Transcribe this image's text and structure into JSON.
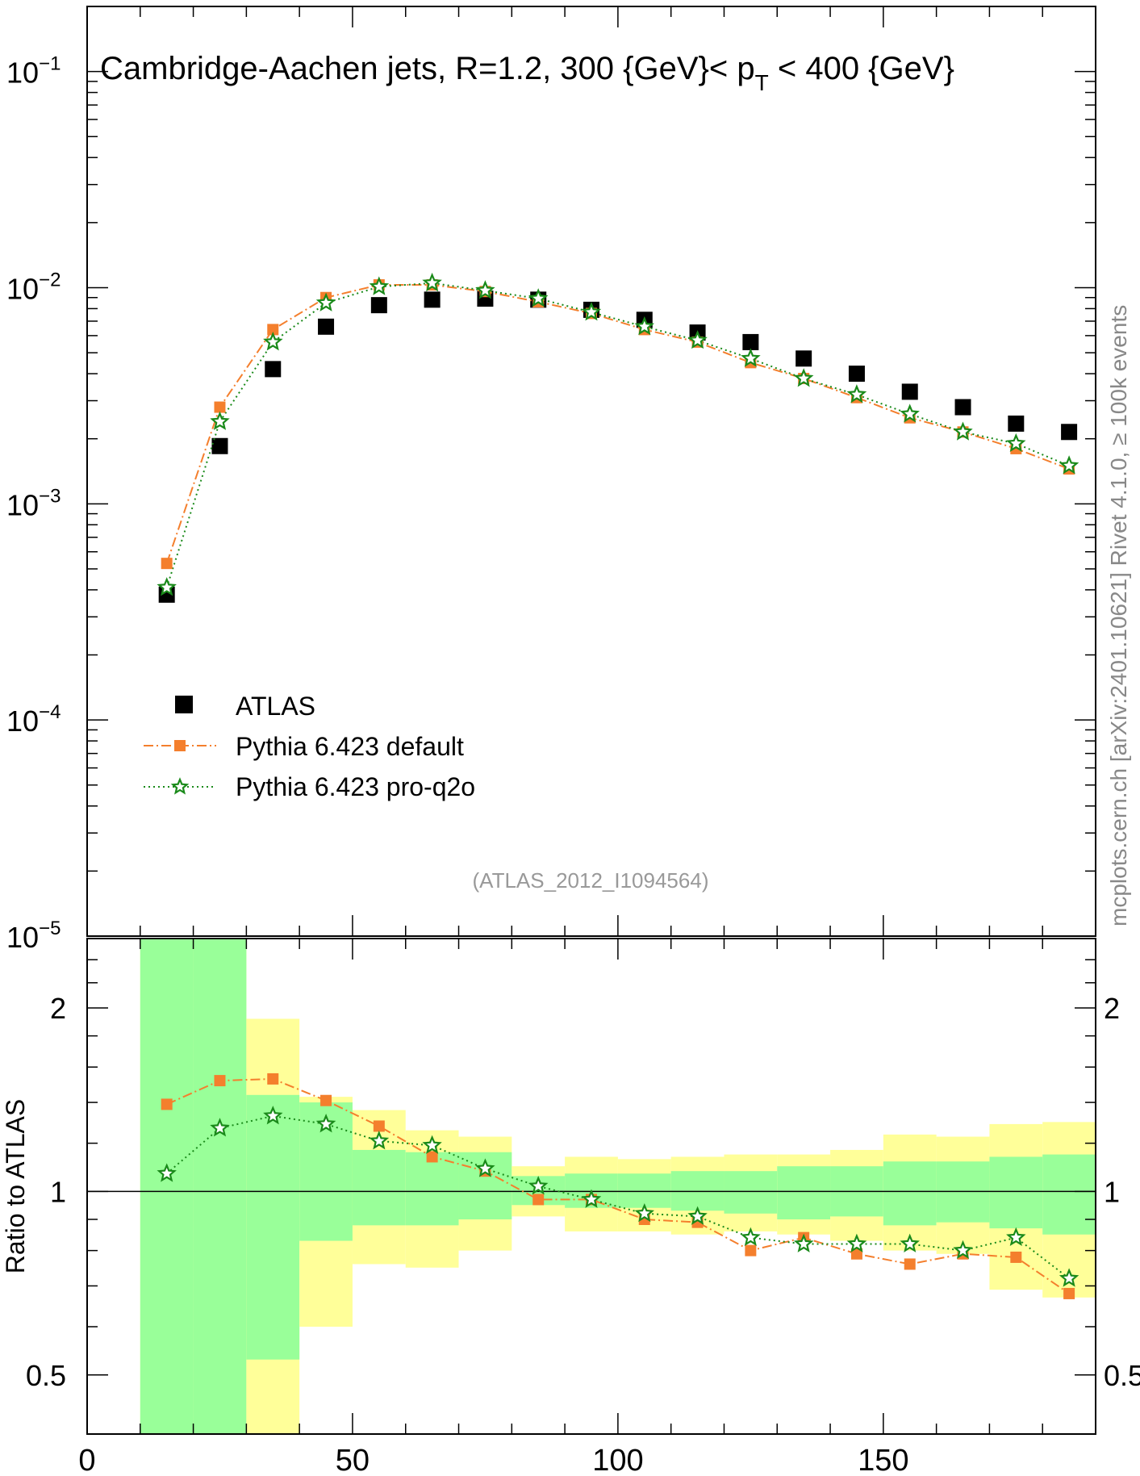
{
  "colors": {
    "atlas": "#000000",
    "pythia_default": "#f47f2d",
    "pythia_proq2o": "#1a8a1a",
    "band_inner": "#99ff99",
    "band_outer": "#ffff99",
    "side_text": "#888888"
  },
  "chart_data": [
    {
      "panel": "main",
      "type": "scatter",
      "title": "Cambridge-Aachen jets, R=1.2, 300 {GeV}< p_T < 400 {GeV}",
      "title_parts": {
        "pre": "Cambridge-Aachen jets, R=1.2, 300 {GeV}< p",
        "sub": "T",
        "post": " < 400 {GeV}"
      },
      "yscale": "log",
      "xlim": [
        0,
        190
      ],
      "ylim": [
        1e-05,
        0.2
      ],
      "ytick_labels": [
        {
          "value": 0.1,
          "base": "10",
          "exp": "−1"
        },
        {
          "value": 0.01,
          "base": "10",
          "exp": "−2"
        },
        {
          "value": 0.001,
          "base": "10",
          "exp": "−3"
        },
        {
          "value": 0.0001,
          "base": "10",
          "exp": "−4"
        },
        {
          "value": 1e-05,
          "base": "10",
          "exp": "−5"
        }
      ],
      "x": [
        15,
        25,
        35,
        45,
        55,
        65,
        75,
        85,
        95,
        105,
        115,
        125,
        135,
        145,
        155,
        165,
        175,
        185
      ],
      "series": [
        {
          "name": "ATLAS",
          "marker": "square",
          "values": [
            0.00038,
            0.00185,
            0.0042,
            0.0066,
            0.0083,
            0.0088,
            0.0089,
            0.0088,
            0.0079,
            0.0071,
            0.0062,
            0.0056,
            0.0047,
            0.004,
            0.0033,
            0.0028,
            0.00235,
            0.00215
          ]
        },
        {
          "name": "Pythia 6.423 default",
          "marker": "square-small",
          "line": "dashdot",
          "values": [
            0.00053,
            0.0028,
            0.0064,
            0.009,
            0.0103,
            0.0103,
            0.0096,
            0.0086,
            0.0076,
            0.0064,
            0.0056,
            0.0045,
            0.0038,
            0.0031,
            0.0025,
            0.00215,
            0.0018,
            0.00145
          ]
        },
        {
          "name": "Pythia 6.423 pro-q2o",
          "marker": "star",
          "line": "dotted",
          "values": [
            0.00041,
            0.0024,
            0.0056,
            0.0085,
            0.0101,
            0.0105,
            0.0097,
            0.0089,
            0.0077,
            0.0066,
            0.0057,
            0.0047,
            0.0038,
            0.0032,
            0.0026,
            0.00215,
            0.0019,
            0.0015
          ]
        }
      ],
      "annotation": "(ATLAS_2012_I1094564)"
    },
    {
      "panel": "ratio",
      "type": "scatter",
      "ylabel": "Ratio to ATLAS",
      "yscale": "log",
      "xlim": [
        0,
        190
      ],
      "ylim": [
        0.4,
        2.6
      ],
      "ytick_labels": [
        {
          "value": 2,
          "label": "2"
        },
        {
          "value": 1,
          "label": "1"
        },
        {
          "value": 0.5,
          "label": "0.5"
        }
      ],
      "xtick_labels": [
        {
          "value": 0,
          "label": "0"
        },
        {
          "value": 50,
          "label": "50"
        },
        {
          "value": 100,
          "label": "100"
        },
        {
          "value": 150,
          "label": "150"
        }
      ],
      "reference_line": 1,
      "bins": [
        [
          10,
          20
        ],
        [
          20,
          30
        ],
        [
          30,
          40
        ],
        [
          40,
          50
        ],
        [
          50,
          60
        ],
        [
          60,
          70
        ],
        [
          70,
          80
        ],
        [
          80,
          90
        ],
        [
          90,
          100
        ],
        [
          100,
          110
        ],
        [
          110,
          120
        ],
        [
          120,
          130
        ],
        [
          130,
          140
        ],
        [
          140,
          150
        ],
        [
          150,
          160
        ],
        [
          160,
          170
        ],
        [
          170,
          180
        ],
        [
          180,
          190
        ]
      ],
      "band_inner": {
        "lo": [
          0.4,
          0.4,
          0.53,
          0.83,
          0.88,
          0.88,
          0.9,
          0.95,
          0.94,
          0.94,
          0.93,
          0.92,
          0.9,
          0.91,
          0.88,
          0.89,
          0.87,
          0.85
        ],
        "hi": [
          2.6,
          2.6,
          1.44,
          1.4,
          1.17,
          1.16,
          1.16,
          1.06,
          1.07,
          1.07,
          1.08,
          1.08,
          1.1,
          1.1,
          1.12,
          1.12,
          1.14,
          1.15
        ]
      },
      "band_outer": {
        "lo": [
          0.4,
          0.4,
          0.4,
          0.6,
          0.76,
          0.75,
          0.8,
          0.91,
          0.86,
          0.86,
          0.85,
          0.86,
          0.85,
          0.83,
          0.8,
          0.79,
          0.69,
          0.67
        ],
        "hi": [
          2.6,
          2.6,
          1.92,
          1.43,
          1.36,
          1.26,
          1.23,
          1.1,
          1.14,
          1.13,
          1.14,
          1.15,
          1.15,
          1.17,
          1.24,
          1.23,
          1.29,
          1.3
        ]
      },
      "x": [
        15,
        25,
        35,
        45,
        55,
        65,
        75,
        85,
        95,
        105,
        115,
        125,
        135,
        145,
        155,
        165,
        175,
        185
      ],
      "series": [
        {
          "name": "Pythia 6.423 default",
          "values": [
            1.39,
            1.52,
            1.53,
            1.41,
            1.28,
            1.14,
            1.08,
            0.97,
            0.97,
            0.9,
            0.89,
            0.8,
            0.84,
            0.79,
            0.76,
            0.79,
            0.78,
            0.68
          ]
        },
        {
          "name": "Pythia 6.423 pro-q2o",
          "values": [
            1.07,
            1.27,
            1.33,
            1.29,
            1.21,
            1.19,
            1.09,
            1.02,
            0.97,
            0.92,
            0.91,
            0.84,
            0.82,
            0.82,
            0.82,
            0.8,
            0.84,
            0.72
          ]
        }
      ]
    }
  ],
  "side_text": "mcplots.cern.ch [arXiv:2401.10621]   Rivet 4.1.0, ≥ 100k events"
}
